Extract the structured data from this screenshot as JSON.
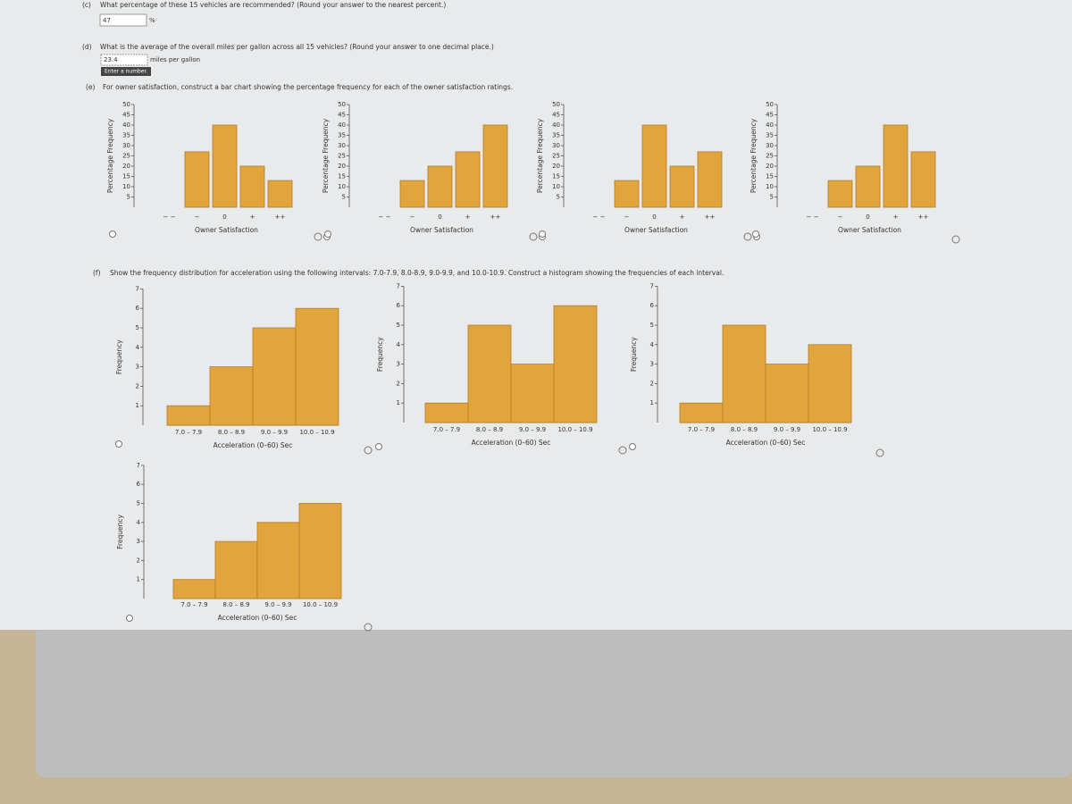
{
  "part_c": {
    "label": "(c)",
    "question": "What percentage of these 15 vehicles are recommended? (Round your answer to the nearest percent.)",
    "answer": "47",
    "unit": "%"
  },
  "part_d": {
    "label": "(d)",
    "question": "What is the average of the overall miles per gallon across all 15 vehicles? (Round your answer to one decimal place.)",
    "answer": "23.4",
    "unit": "miles per gallon",
    "hint": "Enter a number."
  },
  "part_e": {
    "label": "(e)",
    "question": "For owner satisfaction, construct a bar chart showing the percentage frequency for each of the owner satisfaction ratings.",
    "y_label": "Percentage Frequency",
    "x_label": "Owner Satisfaction",
    "categories": [
      "− −",
      "−",
      "0",
      "+",
      "++"
    ],
    "ylim": [
      0,
      50
    ],
    "yticks": [
      5,
      10,
      15,
      20,
      25,
      30,
      35,
      40,
      45,
      50
    ],
    "charts": [
      {
        "values": [
          0,
          27,
          40,
          20,
          13
        ]
      },
      {
        "values": [
          0,
          13,
          20,
          27,
          40
        ]
      },
      {
        "values": [
          0,
          13,
          40,
          20,
          27
        ]
      },
      {
        "values": [
          0,
          13,
          20,
          40,
          27
        ]
      }
    ]
  },
  "part_f": {
    "label": "(f)",
    "question": "Show the frequency distribution for acceleration using the following intervals: 7.0-7.9, 8.0-8.9, 9.0-9.9, and 10.0-10.9. Construct a histogram showing the frequencies of each interval.",
    "y_label": "Frequency",
    "x_label": "Acceleration (0–60) Sec",
    "categories": [
      "7.0 – 7.9",
      "8.0 – 8.9",
      "9.0 – 9.9",
      "10.0 – 10.9"
    ],
    "ylim": [
      0,
      7
    ],
    "yticks": [
      1,
      2,
      3,
      4,
      5,
      6,
      7
    ],
    "charts": [
      {
        "values": [
          1,
          3,
          5,
          6
        ]
      },
      {
        "values": [
          1,
          5,
          3,
          6
        ]
      },
      {
        "values": [
          1,
          5,
          3,
          4
        ]
      },
      {
        "values": [
          1,
          3,
          4,
          5
        ]
      }
    ]
  }
}
